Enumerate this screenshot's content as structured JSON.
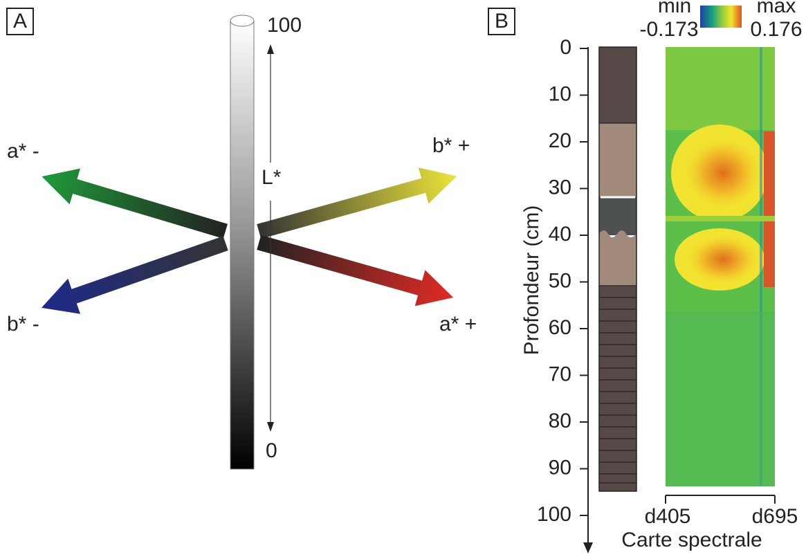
{
  "panel_a": {
    "label": "A",
    "l_top": "100",
    "l_bottom": "0",
    "l_axis": "L*",
    "a_minus": "a* -",
    "b_plus": "b* +",
    "b_minus": "b* -",
    "a_plus": "a* +"
  },
  "panel_b": {
    "label": "B",
    "colorbar": {
      "min_label": "min",
      "min_value": "-0.173",
      "max_label": "max",
      "max_value": "0.176"
    },
    "y_axis": {
      "title": "Profondeur (cm)",
      "ticks": [
        0,
        10,
        20,
        30,
        40,
        50,
        60,
        70,
        80,
        90,
        100
      ]
    },
    "x_axis": {
      "title": "Carte spectrale",
      "start": "d405",
      "end": "d695"
    }
  }
}
